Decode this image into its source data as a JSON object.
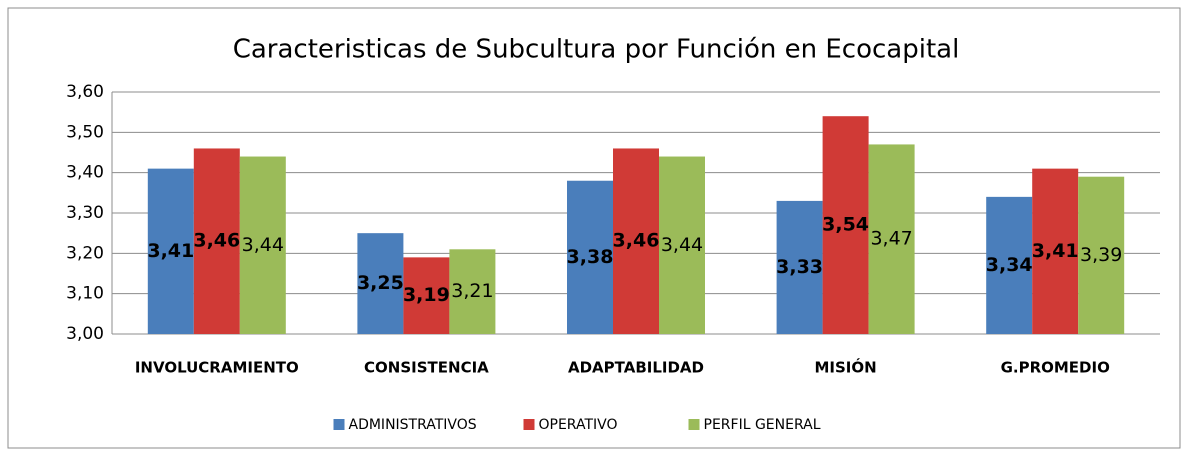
{
  "chart_data": {
    "type": "bar",
    "title": "Caracteristicas de Subcultura por Función en  Ecocapital",
    "categories": [
      "INVOLUCRAMIENTO",
      "CONSISTENCIA",
      "ADAPTABILIDAD",
      "MISIÓN",
      "G.PROMEDIO"
    ],
    "series": [
      {
        "name": "ADMINISTRATIVOS",
        "color": "#4a7ebb",
        "values": [
          3.41,
          3.25,
          3.38,
          3.33,
          3.34
        ],
        "value_labels": [
          "3,41",
          "3,25",
          "3,38",
          "3,33",
          "3,34"
        ]
      },
      {
        "name": "OPERATIVO",
        "color": "#d03a36",
        "values": [
          3.46,
          3.19,
          3.46,
          3.54,
          3.41
        ],
        "value_labels": [
          "3,46",
          "3,19",
          "3,46",
          "3,54",
          "3,41"
        ]
      },
      {
        "name": "PERFIL GENERAL",
        "color": "#9bbb59",
        "values": [
          3.44,
          3.21,
          3.44,
          3.47,
          3.39
        ],
        "value_labels": [
          "3,44",
          "3,21",
          "3,44",
          "3,47",
          "3,39"
        ]
      }
    ],
    "ylim": [
      3.0,
      3.6
    ],
    "yticks": [
      {
        "value": 3.0,
        "label": "3,00"
      },
      {
        "value": 3.1,
        "label": "3,10"
      },
      {
        "value": 3.2,
        "label": "3,20"
      },
      {
        "value": 3.3,
        "label": "3,30"
      },
      {
        "value": 3.4,
        "label": "3,40"
      },
      {
        "value": 3.5,
        "label": "3,50"
      },
      {
        "value": 3.6,
        "label": "3,60"
      }
    ],
    "grid": true,
    "legend": "bottom"
  }
}
